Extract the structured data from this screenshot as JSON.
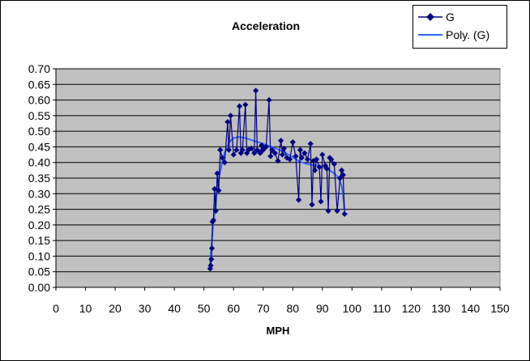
{
  "chart_data": {
    "type": "scatter",
    "title": "Acceleration",
    "xlabel": "MPH",
    "ylabel": "",
    "xlim": [
      0,
      150
    ],
    "ylim": [
      0,
      0.7
    ],
    "xticks": [
      0,
      10,
      20,
      30,
      40,
      50,
      60,
      70,
      80,
      90,
      100,
      110,
      120,
      130,
      140,
      150
    ],
    "yticks": [
      0.0,
      0.05,
      0.1,
      0.15,
      0.2,
      0.25,
      0.3,
      0.35,
      0.4,
      0.45,
      0.5,
      0.55,
      0.6,
      0.65,
      0.7
    ],
    "xtick_labels": [
      "0",
      "10",
      "20",
      "30",
      "40",
      "50",
      "60",
      "70",
      "80",
      "90",
      "100",
      "110",
      "120",
      "130",
      "140",
      "150"
    ],
    "ytick_labels": [
      "0.00",
      "0.05",
      "0.10",
      "0.15",
      "0.20",
      "0.25",
      "0.30",
      "0.35",
      "0.40",
      "0.45",
      "0.50",
      "0.55",
      "0.60",
      "0.65",
      "0.70"
    ],
    "grid": true,
    "legend_position": "top-right",
    "plot_background": "#c0c0c0",
    "series": [
      {
        "name": "G",
        "color": "#000080",
        "marker": "diamond",
        "x": [
          52.1,
          52.3,
          52.5,
          52.7,
          52.9,
          53.2,
          53.6,
          54.0,
          54.5,
          55.0,
          55.5,
          56.2,
          57.0,
          58.0,
          58.4,
          59.0,
          60.0,
          61.0,
          62.0,
          62.5,
          63.0,
          64.0,
          64.5,
          65.0,
          66.0,
          67.0,
          67.5,
          68.0,
          69.0,
          69.5,
          70.0,
          71.0,
          72.0,
          72.5,
          73.0,
          74.0,
          75.0,
          76.0,
          76.5,
          77.0,
          78.0,
          79.0,
          80.0,
          81.0,
          82.0,
          82.5,
          83.0,
          84.0,
          85.0,
          86.0,
          86.5,
          87.0,
          87.5,
          88.0,
          89.0,
          89.5,
          90.0,
          91.0,
          91.5,
          92.0,
          92.5,
          93.0,
          94.0,
          95.0,
          96.0,
          96.5,
          97.0,
          97.5
        ],
        "values": [
          0.06,
          0.07,
          0.09,
          0.125,
          0.21,
          0.215,
          0.315,
          0.245,
          0.365,
          0.31,
          0.44,
          0.415,
          0.4,
          0.53,
          0.44,
          0.55,
          0.425,
          0.44,
          0.58,
          0.43,
          0.44,
          0.585,
          0.43,
          0.44,
          0.445,
          0.43,
          0.63,
          0.44,
          0.43,
          0.455,
          0.44,
          0.45,
          0.6,
          0.42,
          0.44,
          0.43,
          0.405,
          0.47,
          0.425,
          0.445,
          0.415,
          0.41,
          0.465,
          0.42,
          0.28,
          0.44,
          0.415,
          0.43,
          0.41,
          0.46,
          0.265,
          0.405,
          0.375,
          0.41,
          0.385,
          0.275,
          0.425,
          0.39,
          0.38,
          0.245,
          0.415,
          0.41,
          0.395,
          0.245,
          0.35,
          0.375,
          0.36,
          0.235
        ]
      },
      {
        "name": "Poly. (G)",
        "color": "#3366ff",
        "x": [
          52.0,
          53.0,
          54.0,
          55.0,
          56.0,
          57.0,
          58.0,
          59.0,
          60.0,
          62.0,
          64.0,
          66.0,
          68.0,
          70.0,
          72.0,
          74.0,
          76.0,
          78.0,
          80.0,
          82.0,
          84.0,
          86.0,
          88.0,
          90.0,
          92.0,
          94.0,
          95.0,
          96.0,
          96.5,
          97.0,
          97.5
        ],
        "values": [
          0.07,
          0.19,
          0.28,
          0.345,
          0.395,
          0.43,
          0.455,
          0.47,
          0.478,
          0.482,
          0.478,
          0.472,
          0.466,
          0.46,
          0.453,
          0.446,
          0.438,
          0.428,
          0.417,
          0.405,
          0.397,
          0.393,
          0.39,
          0.385,
          0.378,
          0.365,
          0.355,
          0.34,
          0.325,
          0.295,
          0.245
        ]
      }
    ]
  },
  "legend": {
    "items": [
      {
        "label": "G"
      },
      {
        "label": "Poly. (G)"
      }
    ]
  }
}
